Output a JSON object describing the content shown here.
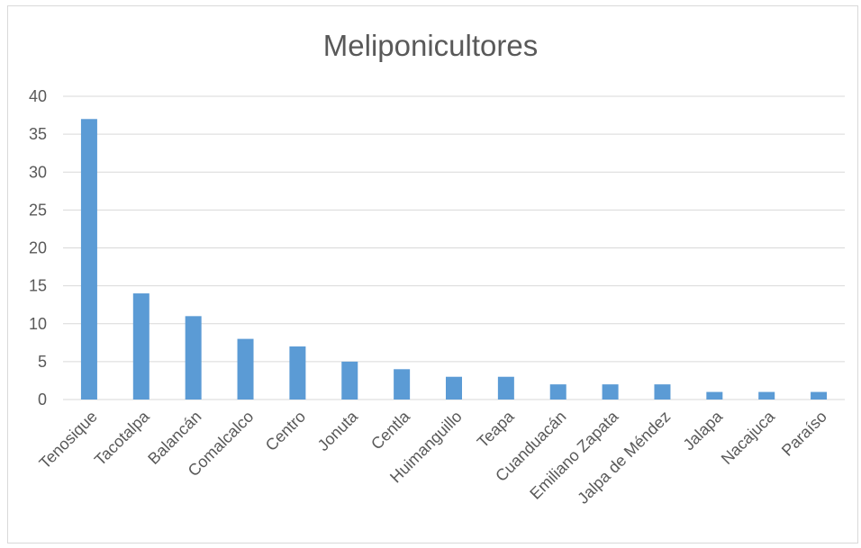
{
  "chart_data": {
    "type": "bar",
    "title": "Meliponicultores",
    "xlabel": "",
    "ylabel": "",
    "ylim": [
      0,
      40
    ],
    "yticks": [
      0,
      5,
      10,
      15,
      20,
      25,
      30,
      35,
      40
    ],
    "grid": true,
    "legend": "none",
    "bar_color": "#5b9bd5",
    "categories": [
      "Tenosique",
      "Tacotalpa",
      "Balancán",
      "Comalcalco",
      "Centro",
      "Jonuta",
      "Centla",
      "Huimanguillo",
      "Teapa",
      "Cuanduacán",
      "Emiliano Zapata",
      "Jalpa de Méndez",
      "Jalapa",
      "Nacajuca",
      "Paraíso"
    ],
    "values": [
      37,
      14,
      11,
      8,
      7,
      5,
      4,
      3,
      3,
      2,
      2,
      2,
      1,
      1,
      1
    ]
  }
}
